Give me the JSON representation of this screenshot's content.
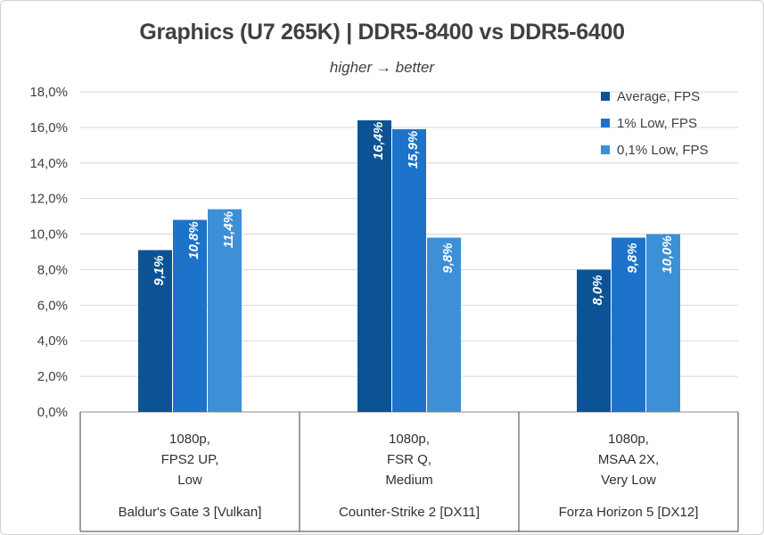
{
  "chart_data": {
    "type": "bar",
    "title": "Graphics (U7 265K) | DDR5-8400 vs DDR5-6400",
    "subtitle": "higher → better",
    "ylim": [
      0,
      18
    ],
    "yticks": [
      "0,0%",
      "2,0%",
      "4,0%",
      "6,0%",
      "8,0%",
      "10,0%",
      "12,0%",
      "14,0%",
      "16,0%",
      "18,0%"
    ],
    "grid": true,
    "legend_position": "top-right",
    "categories": [
      {
        "settings": [
          "1080p,",
          "FPS2 UP,",
          "Low"
        ],
        "game": "Baldur's Gate 3 [Vulkan]"
      },
      {
        "settings": [
          "1080p,",
          "FSR Q,",
          "Medium"
        ],
        "game": "Counter-Strike 2 [DX11]"
      },
      {
        "settings": [
          "1080p,",
          "MSAA 2X,",
          "Very Low"
        ],
        "game": "Forza Horizon 5 [DX12]"
      }
    ],
    "series": [
      {
        "name": "Average, FPS",
        "color": "#0b5394",
        "values": [
          9.1,
          16.4,
          8.0
        ],
        "labels": [
          "9,1%",
          "16,4%",
          "8,0%"
        ]
      },
      {
        "name": "1% Low, FPS",
        "color": "#1c73c9",
        "values": [
          10.8,
          15.9,
          9.8
        ],
        "labels": [
          "10,8%",
          "15,9%",
          "9,8%"
        ]
      },
      {
        "name": "0,1% Low, FPS",
        "color": "#3d8fd6",
        "values": [
          11.4,
          9.8,
          10.0
        ],
        "labels": [
          "11,4%",
          "9,8%",
          "10,0%"
        ]
      }
    ]
  }
}
